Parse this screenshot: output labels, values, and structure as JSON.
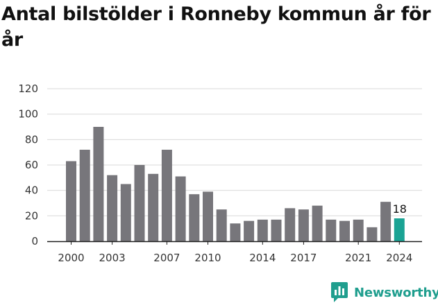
{
  "header": {
    "title": "Antal bilstölder i Ronneby kommun år för år"
  },
  "brand": {
    "name": "Newsworthy",
    "icon": "newsworthy-logo-icon"
  },
  "colors": {
    "bar": "#77767b",
    "highlight": "#1aa394",
    "grid": "#d9d9d9",
    "axis": "#1a1a1a",
    "brand": "#1f9e8e"
  },
  "chart_data": {
    "type": "bar",
    "title": "Antal bilstölder i Ronneby kommun år för år",
    "xlabel": "",
    "ylabel": "",
    "ylim": [
      0,
      120
    ],
    "yticks": [
      0,
      20,
      40,
      60,
      80,
      100,
      120
    ],
    "grid": true,
    "legend": "none",
    "categories": [
      2000,
      2001,
      2002,
      2003,
      2004,
      2005,
      2006,
      2007,
      2008,
      2009,
      2010,
      2011,
      2012,
      2013,
      2014,
      2015,
      2016,
      2017,
      2018,
      2019,
      2020,
      2021,
      2022,
      2023,
      2024
    ],
    "values": [
      63,
      72,
      90,
      52,
      45,
      60,
      53,
      72,
      51,
      37,
      39,
      25,
      14,
      16,
      17,
      17,
      26,
      25,
      28,
      17,
      16,
      17,
      11,
      31,
      18
    ],
    "xtick_labels": [
      2000,
      2003,
      2007,
      2010,
      2014,
      2017,
      2021,
      2024
    ],
    "highlight_index": 24,
    "data_labels": [
      {
        "category": 2024,
        "text": "18"
      }
    ]
  }
}
